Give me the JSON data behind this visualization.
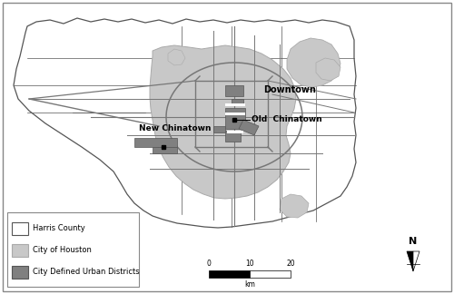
{
  "bg_color": "#ffffff",
  "harris_county_color": "#ffffff",
  "harris_county_edge": "#555555",
  "city_houston_color": "#c8c8c8",
  "city_houston_edge": "#aaaaaa",
  "urban_district_color": "#808080",
  "urban_district_edge": "#555555",
  "road_color": "#777777",
  "road_lw": 0.7,
  "label_downtown": "Downtown",
  "label_new_chinatown": "New Chinatown",
  "label_old_chinatown": "Old  Chinatown",
  "legend_labels": [
    "Harris County",
    "City of Houston",
    "City Defined Urban Districts"
  ],
  "legend_colors": [
    "#ffffff",
    "#c8c8c8",
    "#808080"
  ],
  "legend_edge_colors": [
    "#555555",
    "#aaaaaa",
    "#555555"
  ],
  "scalebar_ticks": [
    "0",
    "10",
    "20"
  ],
  "scalebar_unit": "km",
  "north_label": "N",
  "figsize": [
    5.0,
    3.24
  ],
  "dpi": 100
}
